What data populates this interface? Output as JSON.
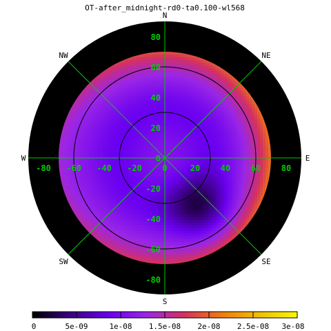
{
  "chart_data": {
    "type": "heatmap",
    "projection": "polar-sky",
    "title": "OT-after_midnight-rd0-ta0.100-wl568",
    "directions": [
      "N",
      "NE",
      "E",
      "SE",
      "S",
      "SW",
      "W",
      "NW"
    ],
    "direction_labels": {
      "n": "N",
      "ne": "NE",
      "e": "E",
      "se": "SE",
      "s": "S",
      "sw": "SW",
      "w": "W",
      "nw": "NW"
    },
    "x_tick_labels": [
      "-80",
      "-60",
      "-40",
      "-20",
      "0",
      "20",
      "40",
      "60",
      "80"
    ],
    "y_tick_labels": [
      "80",
      "60",
      "40",
      "20",
      "0",
      "-20",
      "-40",
      "-60",
      "-80"
    ],
    "axis_ticks": [
      -80,
      -60,
      -40,
      -20,
      0,
      20,
      40,
      60,
      80
    ],
    "axis_range": [
      -90,
      90
    ],
    "range_rings_deg": [
      30,
      60
    ],
    "spokes_deg": [
      0,
      45,
      90,
      135
    ],
    "grid_color": "#00c800",
    "ring_color": "#000000",
    "background_color": "#000000",
    "data_extent_radius_deg": 70,
    "colorbar": {
      "min": 0,
      "max": 3e-08,
      "tick_labels": [
        "0",
        "5e-09",
        "1e-08",
        "1.5e-08",
        "2e-08",
        "2.5e-08",
        "3e-08"
      ],
      "colormap": [
        "#000000",
        "#3b0082",
        "#6a00f0",
        "#9a26e6",
        "#d43060",
        "#f07a10",
        "#f0c000",
        "#f8f800"
      ]
    },
    "field": {
      "description_values": "radiance in colorbar units by zenith distance and azimuth",
      "center_value": 1.1e-08,
      "min_value": 4e-09,
      "min_location": {
        "azimuth_deg": 145,
        "zenith_deg": 40
      },
      "edge_value_north": 1.9e-08,
      "edge_value_east": 2.1e-08,
      "edge_value_south": 1.75e-08,
      "edge_value_west": 1.35e-08
    }
  }
}
